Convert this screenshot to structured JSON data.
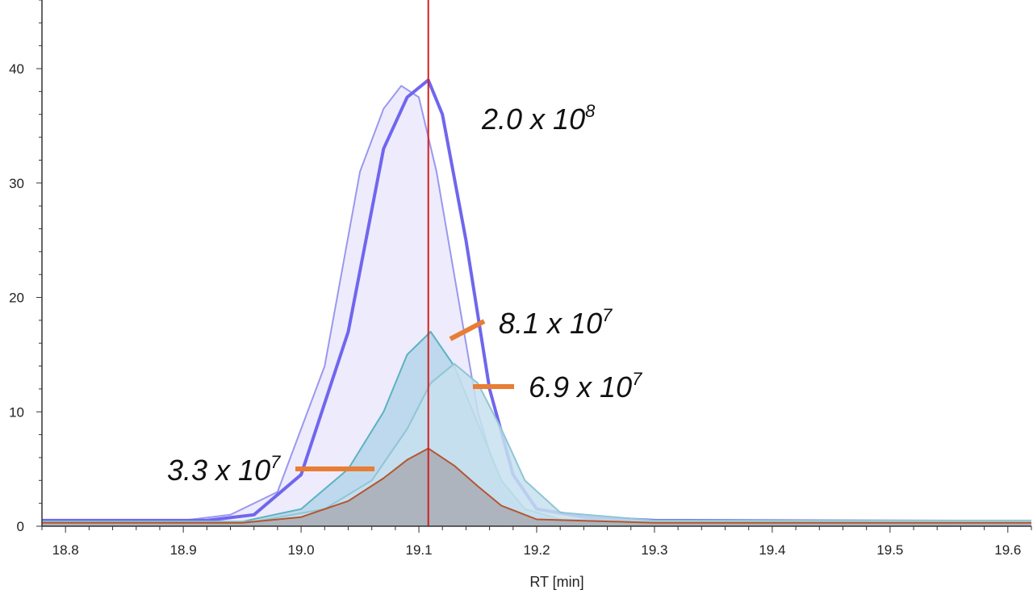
{
  "chart_data": {
    "type": "line",
    "xlabel": "RT [min]",
    "ylabel": "",
    "xlim": [
      18.78,
      19.62
    ],
    "ylim": [
      0,
      46
    ],
    "x_ticks": [
      "18.8",
      "18.9",
      "19.0",
      "19.1",
      "19.2",
      "19.3",
      "19.4",
      "19.5",
      "19.6"
    ],
    "y_ticks": [
      "0",
      "10",
      "20",
      "30",
      "40"
    ],
    "marker_rt": 19.108,
    "colors": {
      "accent": "#7066ee",
      "marker": "#d42020",
      "callout": "#e87d35",
      "teal": "#5bb3c0",
      "brown": "#b5552f"
    },
    "series": [
      {
        "x": [
          18.78,
          18.9,
          18.94,
          18.98,
          19.02,
          19.05,
          19.07,
          19.085,
          19.1,
          19.115,
          19.13,
          19.15,
          19.17,
          19.19,
          19.22,
          19.3,
          19.62
        ],
        "values": [
          0.5,
          0.5,
          1,
          3,
          14,
          31,
          36.5,
          38.5,
          37.5,
          31,
          22,
          10,
          3,
          1,
          0.5,
          0.5,
          0.4
        ],
        "color": "#9a98ee",
        "fill": "#ebe8fb"
      },
      {
        "x": [
          18.78,
          18.92,
          18.96,
          19.0,
          19.04,
          19.07,
          19.09,
          19.108,
          19.12,
          19.14,
          19.16,
          19.18,
          19.2,
          19.24,
          19.3,
          19.62
        ],
        "values": [
          0.5,
          0.5,
          1,
          4.5,
          17,
          33,
          37.5,
          39,
          36,
          25,
          12,
          4.5,
          1.5,
          0.8,
          0.5,
          0.4
        ],
        "color": "#7066ee",
        "fill": "none",
        "width": 4
      },
      {
        "x": [
          18.78,
          18.95,
          19.0,
          19.04,
          19.07,
          19.09,
          19.11,
          19.13,
          19.15,
          19.17,
          19.19,
          19.22,
          19.3,
          19.62
        ],
        "values": [
          0.4,
          0.4,
          1.5,
          5,
          10,
          15,
          17,
          14,
          9,
          4,
          1.5,
          0.6,
          0.4,
          0.4
        ],
        "color": "#5bb3c0",
        "fill": "#b5d5ea"
      },
      {
        "x": [
          18.78,
          18.96,
          19.02,
          19.06,
          19.09,
          19.11,
          19.13,
          19.15,
          19.17,
          19.19,
          19.22,
          19.3,
          19.62
        ],
        "values": [
          0.4,
          0.4,
          1.5,
          4,
          8.5,
          12.5,
          14.2,
          12.5,
          8.5,
          4,
          1.2,
          0.5,
          0.5
        ],
        "color": "#8fc6d4",
        "fill": "#c7e1ef"
      },
      {
        "x": [
          18.78,
          18.95,
          19.0,
          19.04,
          19.07,
          19.09,
          19.108,
          19.13,
          19.15,
          19.17,
          19.2,
          19.3,
          19.62
        ],
        "values": [
          0.3,
          0.3,
          0.8,
          2.2,
          4.2,
          5.8,
          6.8,
          5.3,
          3.5,
          1.8,
          0.6,
          0.3,
          0.3
        ],
        "color": "#b5552f",
        "fill": "#a8adb4"
      }
    ],
    "annotations": [
      {
        "base": "2.0 x 10",
        "exp": "8"
      },
      {
        "base": "8.1 x 10",
        "exp": "7"
      },
      {
        "base": "6.9 x 10",
        "exp": "7"
      },
      {
        "base": "3.3 x 10",
        "exp": "7"
      }
    ]
  }
}
